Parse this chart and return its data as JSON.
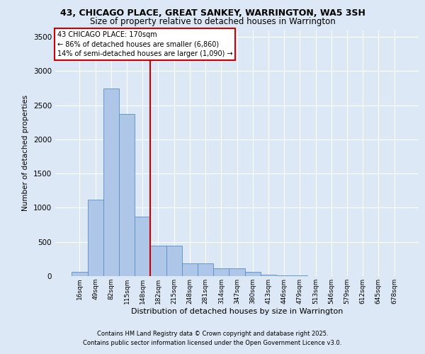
{
  "title_line1": "43, CHICAGO PLACE, GREAT SANKEY, WARRINGTON, WA5 3SH",
  "title_line2": "Size of property relative to detached houses in Warrington",
  "xlabel": "Distribution of detached houses by size in Warrington",
  "ylabel": "Number of detached properties",
  "categories": [
    "16sqm",
    "49sqm",
    "82sqm",
    "115sqm",
    "148sqm",
    "182sqm",
    "215sqm",
    "248sqm",
    "281sqm",
    "314sqm",
    "347sqm",
    "380sqm",
    "413sqm",
    "446sqm",
    "479sqm",
    "513sqm",
    "546sqm",
    "579sqm",
    "612sqm",
    "645sqm",
    "678sqm"
  ],
  "values": [
    65,
    1120,
    2750,
    2370,
    870,
    450,
    450,
    185,
    185,
    110,
    110,
    65,
    25,
    10,
    10,
    5,
    5,
    2,
    2,
    2,
    2
  ],
  "bar_color": "#aec6e8",
  "bar_edge_color": "#5a8fc0",
  "vline_color": "#cc0000",
  "vline_pos": 4.5,
  "annotation_text": "43 CHICAGO PLACE: 170sqm\n← 86% of detached houses are smaller (6,860)\n14% of semi-detached houses are larger (1,090) →",
  "annotation_box_color": "#ffffff",
  "annotation_box_edge_color": "#cc0000",
  "ylim": [
    0,
    3600
  ],
  "yticks": [
    0,
    500,
    1000,
    1500,
    2000,
    2500,
    3000,
    3500
  ],
  "footer_line1": "Contains HM Land Registry data © Crown copyright and database right 2025.",
  "footer_line2": "Contains public sector information licensed under the Open Government Licence v3.0.",
  "bg_color": "#dce8f5"
}
